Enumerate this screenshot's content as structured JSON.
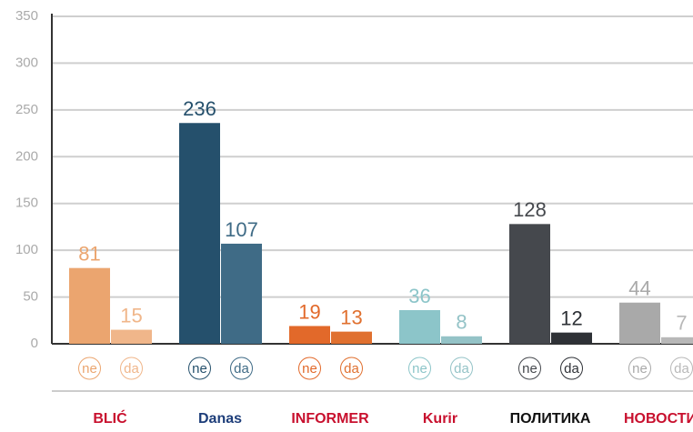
{
  "chart_data": {
    "type": "bar",
    "categories": [
      "BLIĆ",
      "Danas",
      "INFORMER",
      "Kurir",
      "ПОЛИТИКА",
      "НОВОСТИ"
    ],
    "series": [
      {
        "name": "ne",
        "values": [
          81,
          236,
          19,
          36,
          128,
          44
        ]
      },
      {
        "name": "da",
        "values": [
          15,
          107,
          13,
          8,
          12,
          7
        ]
      }
    ],
    "category_colors": [
      [
        "#eba56f",
        "#f0b68a"
      ],
      [
        "#25506c",
        "#3f6b86"
      ],
      [
        "#e2692a",
        "#e0702f"
      ],
      [
        "#8cc5c9",
        "#94c3c7"
      ],
      [
        "#45484d",
        "#2e3136"
      ],
      [
        "#a9a9a9",
        "#b8b8b8"
      ]
    ],
    "ylim": [
      0,
      350
    ],
    "yticks": [
      0,
      50,
      100,
      150,
      200,
      250,
      300,
      350
    ],
    "grid": true
  }
}
